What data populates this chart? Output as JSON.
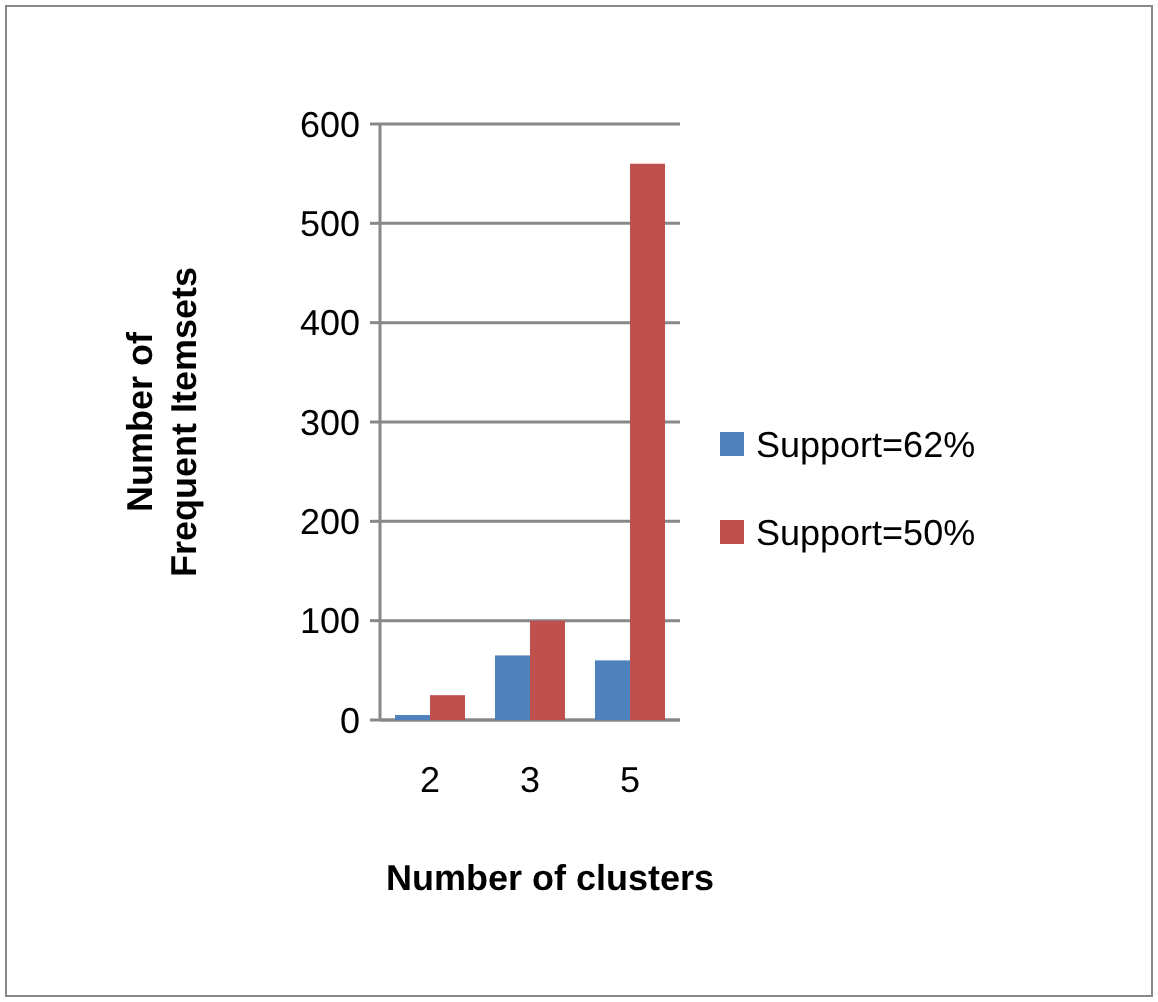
{
  "chart_data": {
    "type": "bar",
    "xlabel": "Number of clusters",
    "ylabel": "Number of Frequent Itemsets",
    "categories": [
      "2",
      "3",
      "5"
    ],
    "series": [
      {
        "name": "Support=62%",
        "color": "#4f81bd",
        "values": [
          5,
          65,
          60
        ]
      },
      {
        "name": "Support=50%",
        "color": "#c0504d",
        "values": [
          25,
          100,
          560
        ]
      }
    ],
    "ylim": [
      0,
      600
    ],
    "yticks": [
      0,
      100,
      200,
      300,
      400,
      500,
      600
    ],
    "grid": "y",
    "legend": "right"
  }
}
